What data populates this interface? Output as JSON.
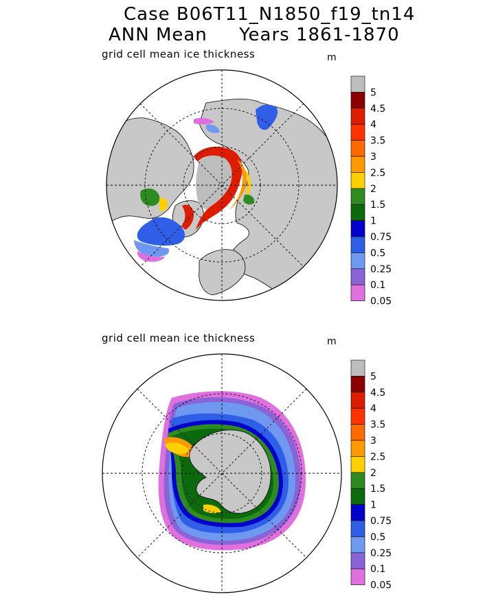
{
  "title": {
    "line1": "Case B06T11_N1850_f19_tn14",
    "line2": "ANN Mean     Years 1861-1870"
  },
  "panels": [
    {
      "label": "grid cell mean ice thickness",
      "unit": "m",
      "hemisphere": "north"
    },
    {
      "label": "grid cell mean ice thickness",
      "unit": "m",
      "hemisphere": "south"
    }
  ],
  "colorbar": {
    "levels": [
      "5",
      "4.5",
      "4",
      "3.5",
      "3",
      "2.5",
      "2",
      "1.5",
      "1",
      "0.75",
      "0.5",
      "0.25",
      "0.1",
      "0.05"
    ],
    "colors": [
      "#bdbdbd",
      "#8b0000",
      "#dd1c00",
      "#ff3300",
      "#ff6a00",
      "#ff9900",
      "#ffd000",
      "#2e8b20",
      "#0b6a0b",
      "#0000cc",
      "#2f5fe6",
      "#6f98f0",
      "#8a63d6",
      "#e070e0"
    ]
  },
  "map_colors": {
    "land": "#c8c8c8",
    "ocean": "#ffffff",
    "grid": "#000000"
  }
}
